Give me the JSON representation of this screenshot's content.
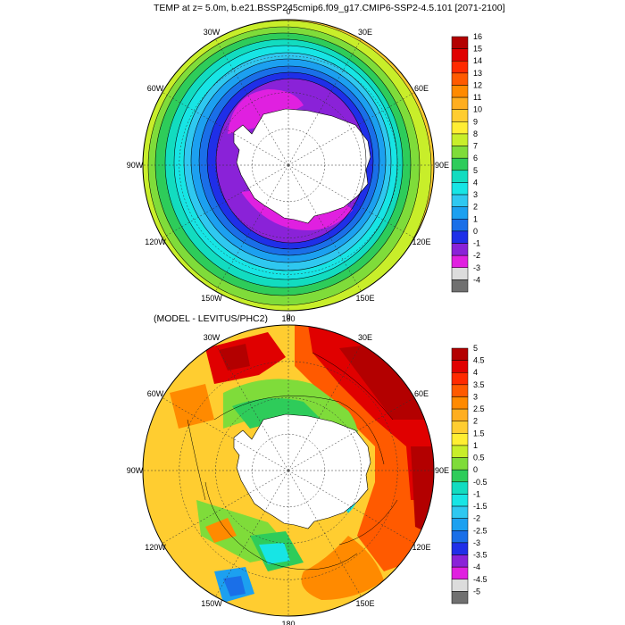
{
  "panels": {
    "top": {
      "title": "TEMP at z=   5.0m, b.e21.BSSP245cmip6.f09_g17.CMIP6-SSP2-4.5.101 [2071-2100]",
      "lon_labels": [
        "0",
        "30E",
        "60E",
        "90E",
        "120E",
        "150E",
        "180",
        "150W",
        "120W",
        "90W",
        "60W",
        "30W"
      ],
      "colorbar": {
        "labels": [
          "16",
          "15",
          "14",
          "13",
          "12",
          "11",
          "10",
          "9",
          "8",
          "7",
          "6",
          "5",
          "4",
          "3",
          "2",
          "1",
          "0",
          "-1",
          "-2",
          "-3",
          "-4"
        ],
        "colors": [
          "#b30000",
          "#e00000",
          "#ff2a00",
          "#ff5a00",
          "#ff8a00",
          "#ffae20",
          "#ffcd30",
          "#ffee33",
          "#c8ee2a",
          "#7fdc3a",
          "#2ecc5a",
          "#12dcc0",
          "#17e5e5",
          "#2fc8f0",
          "#1ca0f0",
          "#1a6fe8",
          "#1f2fe8",
          "#8a22d8",
          "#e020e0",
          "#dcdcdc",
          "#707070"
        ]
      }
    },
    "bottom": {
      "title": "(MODEL - LEVITUS/PHC2)",
      "lon_labels": [
        "0",
        "30E",
        "60E",
        "90E",
        "120E",
        "150E",
        "180",
        "150W",
        "120W",
        "90W",
        "60W",
        "30W"
      ],
      "colorbar": {
        "labels": [
          "5",
          "4.5",
          "4",
          "3.5",
          "3",
          "2.5",
          "2",
          "1.5",
          "1",
          "0.5",
          "0",
          "-0.5",
          "-1",
          "-1.5",
          "-2",
          "-2.5",
          "-3",
          "-3.5",
          "-4",
          "-4.5",
          "-5"
        ],
        "colors": [
          "#b30000",
          "#e00000",
          "#ff2a00",
          "#ff5a00",
          "#ff8a00",
          "#ffae20",
          "#ffcd30",
          "#ffee33",
          "#c8ee2a",
          "#7fdc3a",
          "#2ecc5a",
          "#12dcc0",
          "#17e5e5",
          "#2fc8f0",
          "#1ca0f0",
          "#1a6fe8",
          "#1f2fe8",
          "#8a22d8",
          "#e020e0",
          "#dcdcdc",
          "#707070"
        ]
      }
    }
  }
}
